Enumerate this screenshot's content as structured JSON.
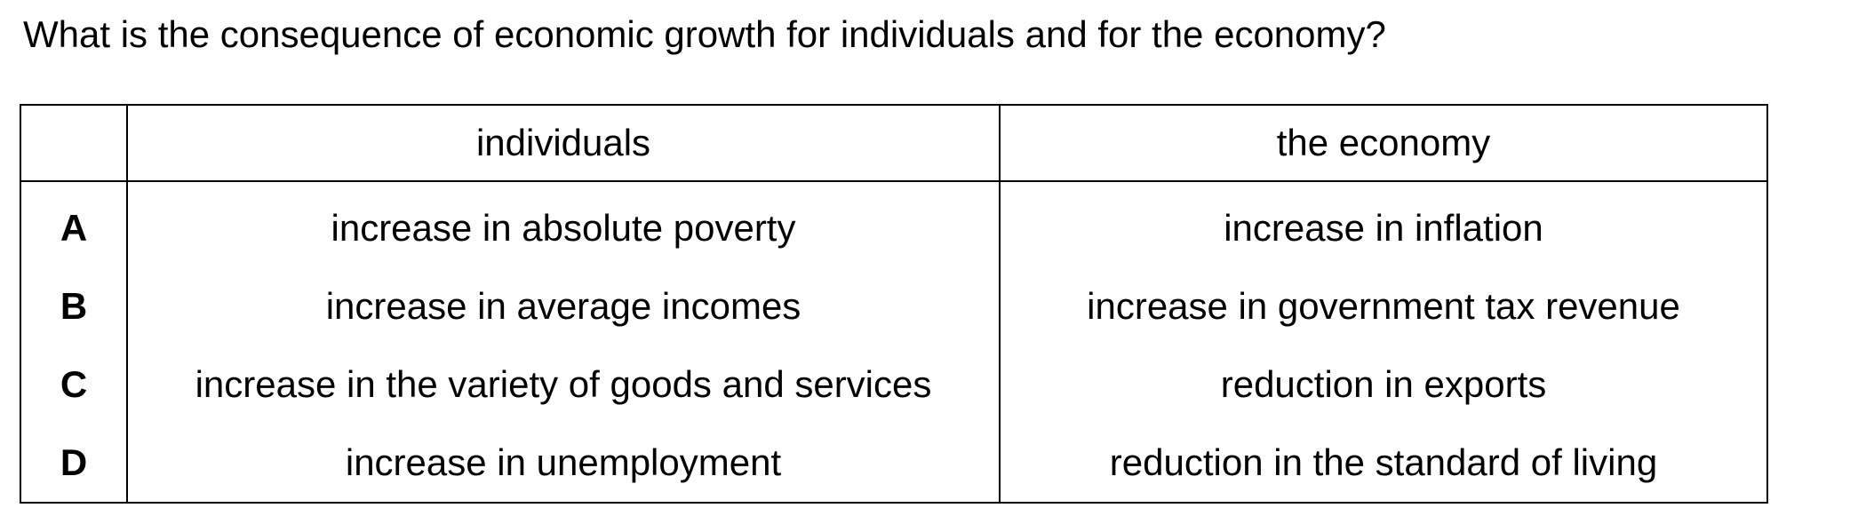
{
  "question": "What is the consequence of economic growth for individuals and for the economy?",
  "table": {
    "headers": [
      "",
      "individuals",
      "the economy"
    ],
    "rows": [
      {
        "letter": "A",
        "individuals": "increase in absolute poverty",
        "economy": "increase in inflation"
      },
      {
        "letter": "B",
        "individuals": "increase in average incomes",
        "economy": "increase in government tax revenue"
      },
      {
        "letter": "C",
        "individuals": "increase in the variety of goods and services",
        "economy": "reduction in exports"
      },
      {
        "letter": "D",
        "individuals": "increase in unemployment",
        "economy": "reduction in the standard of living"
      }
    ]
  }
}
